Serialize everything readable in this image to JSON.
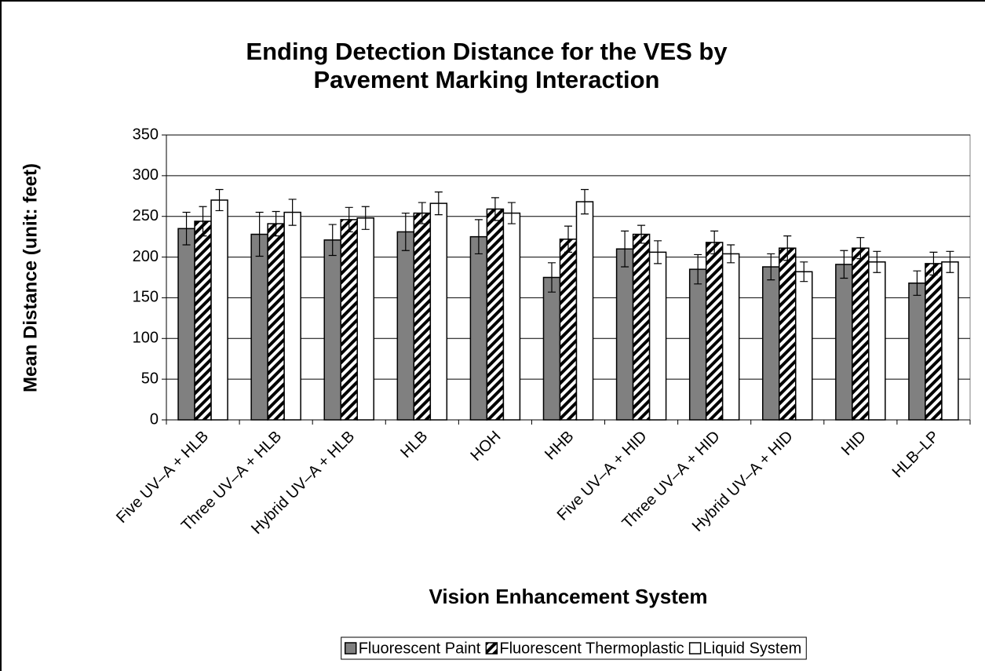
{
  "chart_data": {
    "type": "bar",
    "title": "Ending Detection Distance for the VES by Pavement Marking Interaction",
    "x_label": "Vision Enhancement System",
    "y_label": "Mean Distance (unit: feet)",
    "categories": [
      "Five UV–A + HLB",
      "Three UV–A + HLB",
      "Hybrid UV–A + HLB",
      "HLB",
      "HOH",
      "HHB",
      "Five UV–A + HID",
      "Three UV–A + HID",
      "Hybrid UV–A + HID",
      "HID",
      "HLB–LP"
    ],
    "series": [
      {
        "name": "Fluorescent Paint",
        "color": "#808080",
        "pattern": "solid",
        "values": [
          235,
          228,
          221,
          231,
          225,
          175,
          210,
          185,
          188,
          191,
          168
        ],
        "errors": [
          20,
          27,
          19,
          23,
          21,
          18,
          22,
          18,
          16,
          17,
          15
        ]
      },
      {
        "name": "Fluorescent Thermoplastic",
        "color": "#000000",
        "pattern": "hatch",
        "values": [
          244,
          241,
          246,
          254,
          259,
          222,
          228,
          218,
          211,
          211,
          192
        ],
        "errors": [
          18,
          15,
          15,
          13,
          14,
          16,
          11,
          14,
          15,
          13,
          14
        ]
      },
      {
        "name": "Liquid System",
        "color": "#ffffff",
        "pattern": "solid",
        "values": [
          270,
          255,
          248,
          266,
          254,
          268,
          206,
          204,
          182,
          194,
          194
        ],
        "errors": [
          13,
          16,
          14,
          14,
          13,
          15,
          14,
          11,
          12,
          13,
          13
        ]
      }
    ],
    "ylim": [
      0,
      350
    ],
    "yticks": [
      0,
      50,
      100,
      150,
      200,
      250,
      300,
      350
    ],
    "grid": true,
    "legend": "bottom"
  }
}
